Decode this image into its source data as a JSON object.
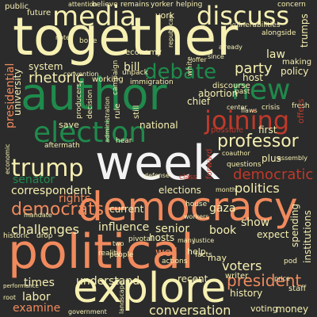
{
  "palette": {
    "background": "#2b2b2b",
    "orange": "#f08a5d",
    "cream": "#f6f0b2",
    "green": "#1f8a4c",
    "red": "#c0392b",
    "white": "#f3f3f3",
    "dark_orange": "#d9572b",
    "pale_green": "#8fb79c"
  },
  "words": {
    "together": "together",
    "author": "author",
    "week": "week",
    "democracy": "democracy",
    "political": "political",
    "explore": "explore",
    "media": "media",
    "discuss": "discuss",
    "election": "election",
    "new": "new",
    "joining": "joining",
    "debate": "debate",
    "trump": "trump",
    "professor": "professor",
    "democrats": "democrats",
    "challenges": "challenges",
    "democratic": "democratic",
    "politics": "politics",
    "president": "president",
    "rhetoric": "rhetoric",
    "party": "party",
    "presidential": "presidential",
    "conversation": "conversation",
    "voters": "voters",
    "understand": "understand",
    "senator": "senator",
    "correspondent": "correspondent",
    "rights": "rights",
    "influence": "influence",
    "senior": "senior",
    "book": "book",
    "show": "show",
    "elections": "elections",
    "times": "times",
    "labor": "labor",
    "examine": "examine",
    "history": "history",
    "money": "money",
    "public": "public",
    "future": "future",
    "system": "system",
    "university": "university",
    "york": "york",
    "law": "law",
    "policy": "policy",
    "host": "host",
    "chief": "chief",
    "national": "national",
    "save": "save",
    "plus": "plus",
    "first": "first",
    "hosts": "hosts",
    "institutions": "institutions",
    "spending": "spending",
    "expect": "expect",
    "recent": "recent",
    "well": "well",
    "help": "help",
    "may": "may",
    "writer": "writer",
    "voting": "voting",
    "staff": "staff",
    "current": "current",
    "gaza": "gaza",
    "bill": "bill",
    "rule": "rule",
    "abortion": "abortion",
    "trumps": "trumps",
    "making": "making",
    "economy": "economy",
    "working": "working",
    "still": "still",
    "discourse": "discourse",
    "decision": "decision",
    "immigration": "immigration",
    "unpack": "unpack",
    "campaign": "campaign",
    "past": "past",
    "possible": "possible",
    "crisis": "crisis",
    "fresh": "fresh",
    "offers": "offers",
    "vulnerabilities": "vulnerabilities",
    "alongside": "alongside",
    "concern": "concern",
    "remains": "remains",
    "helping": "helping",
    "yorker": "yorker",
    "believe": "believe",
    "attention": "attention",
    "bone": "bone",
    "notes": "notes",
    "convention": "convention",
    "producers": "producers",
    "hear": "hear",
    "aftermath": "aftermath",
    "historic": "historic",
    "drop": "drop",
    "reality": "reality",
    "people": "people",
    "actions": "actions",
    "facts": "facts",
    "pivotal": "pivotal",
    "month": "month",
    "house": "house",
    "defense": "defense",
    "class": "class",
    "forward": "forward",
    "questions": "questions",
    "coauthor": "coauthor",
    "assembly": "assembly",
    "workers": "workers",
    "pod": "pod",
    "price": "price",
    "root": "root",
    "government": "government",
    "landscape": "landscape",
    "performance": "performance",
    "economic": "economic",
    "already": "already",
    "since": "since",
    "offer": "offer",
    "white": "white",
    "flaws": "flaws",
    "center": "center",
    "two": "two",
    "republican": "republican",
    "many": "many",
    "justice": "justice",
    "administration": "administration",
    "mandate": "mandate"
  }
}
